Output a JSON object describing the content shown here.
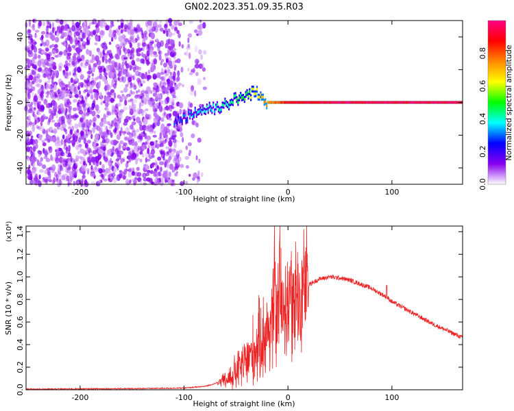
{
  "title": "GN02.2023.351.09.35.R03",
  "chart_data": [
    {
      "type": "heatmap",
      "xlabel": "Height of straight line (km)",
      "ylabel": "Frequency (Hz)",
      "xlim": [
        -252,
        168
      ],
      "ylim": [
        -50,
        50
      ],
      "x_ticks": [
        -200,
        -100,
        0,
        100
      ],
      "y_ticks": [
        -40,
        -20,
        0,
        20,
        40
      ],
      "colorbar": {
        "label": "Normalized spectral amplitude",
        "range": [
          0.0,
          1.0
        ],
        "ticks": [
          0.0,
          0.2,
          0.4,
          0.6,
          0.8
        ],
        "colormap": [
          "#ffffff",
          "#8800ee",
          "#0000ff",
          "#00ffff",
          "#00ff00",
          "#ffff00",
          "#ff8800",
          "#ff0000",
          "#ff0088"
        ]
      },
      "noise_region": {
        "x_range": [
          -252,
          -80
        ],
        "level": 0.12
      },
      "signal_band": [
        {
          "x": -110,
          "y": -12,
          "level": 0.25
        },
        {
          "x": -100,
          "y": -9,
          "level": 0.3
        },
        {
          "x": -90,
          "y": -6,
          "level": 0.33
        },
        {
          "x": -80,
          "y": -4,
          "level": 0.36
        },
        {
          "x": -70,
          "y": -3,
          "level": 0.38
        },
        {
          "x": -60,
          "y": -1,
          "level": 0.42
        },
        {
          "x": -50,
          "y": 2,
          "level": 0.45
        },
        {
          "x": -40,
          "y": 4,
          "level": 0.5
        },
        {
          "x": -34,
          "y": 7,
          "level": 0.6
        },
        {
          "x": -20,
          "y": 0,
          "level": 0.75
        },
        {
          "x": -10,
          "y": 0,
          "level": 0.82
        },
        {
          "x": 0,
          "y": 0,
          "level": 0.9
        },
        {
          "x": 50,
          "y": 0,
          "level": 0.95
        },
        {
          "x": 100,
          "y": 0,
          "level": 0.95
        },
        {
          "x": 168,
          "y": 0,
          "level": 0.95
        }
      ]
    },
    {
      "type": "line",
      "xlabel": "Height of straight line (km)",
      "ylabel": "SNR (10 * v/v)",
      "multiplier": "(x10⁴)",
      "xlim": [
        -252,
        168
      ],
      "ylim": [
        0,
        1.45
      ],
      "x_ticks": [
        -200,
        -100,
        0,
        100
      ],
      "y_ticks": [
        0.0,
        0.2,
        0.4,
        0.6,
        0.8,
        1.0,
        1.2,
        1.4
      ],
      "color": "#ee2222",
      "series": [
        {
          "x": [
            -252,
            -200,
            -150,
            -100,
            -80,
            -60,
            -50,
            -40,
            -30,
            -20,
            -15,
            -10,
            -5,
            0,
            10,
            20,
            30,
            40,
            50,
            60,
            80,
            95,
            100,
            120,
            140,
            168
          ],
          "y": [
            0.005,
            0.008,
            0.01,
            0.015,
            0.03,
            0.08,
            0.15,
            0.25,
            0.38,
            0.52,
            0.6,
            0.68,
            0.75,
            0.8,
            0.86,
            0.93,
            0.98,
            1.0,
            0.99,
            0.97,
            0.9,
            0.82,
            0.78,
            0.68,
            0.58,
            0.46
          ]
        }
      ],
      "spikes": [
        {
          "x": -13,
          "y": 1.23
        },
        {
          "x": -8,
          "y": 1.45
        },
        {
          "x": 3,
          "y": 1.18
        },
        {
          "x": 8,
          "y": 0.95
        },
        {
          "x": 12,
          "y": 0.3
        },
        {
          "x": 95,
          "y": 0.92
        }
      ]
    }
  ]
}
